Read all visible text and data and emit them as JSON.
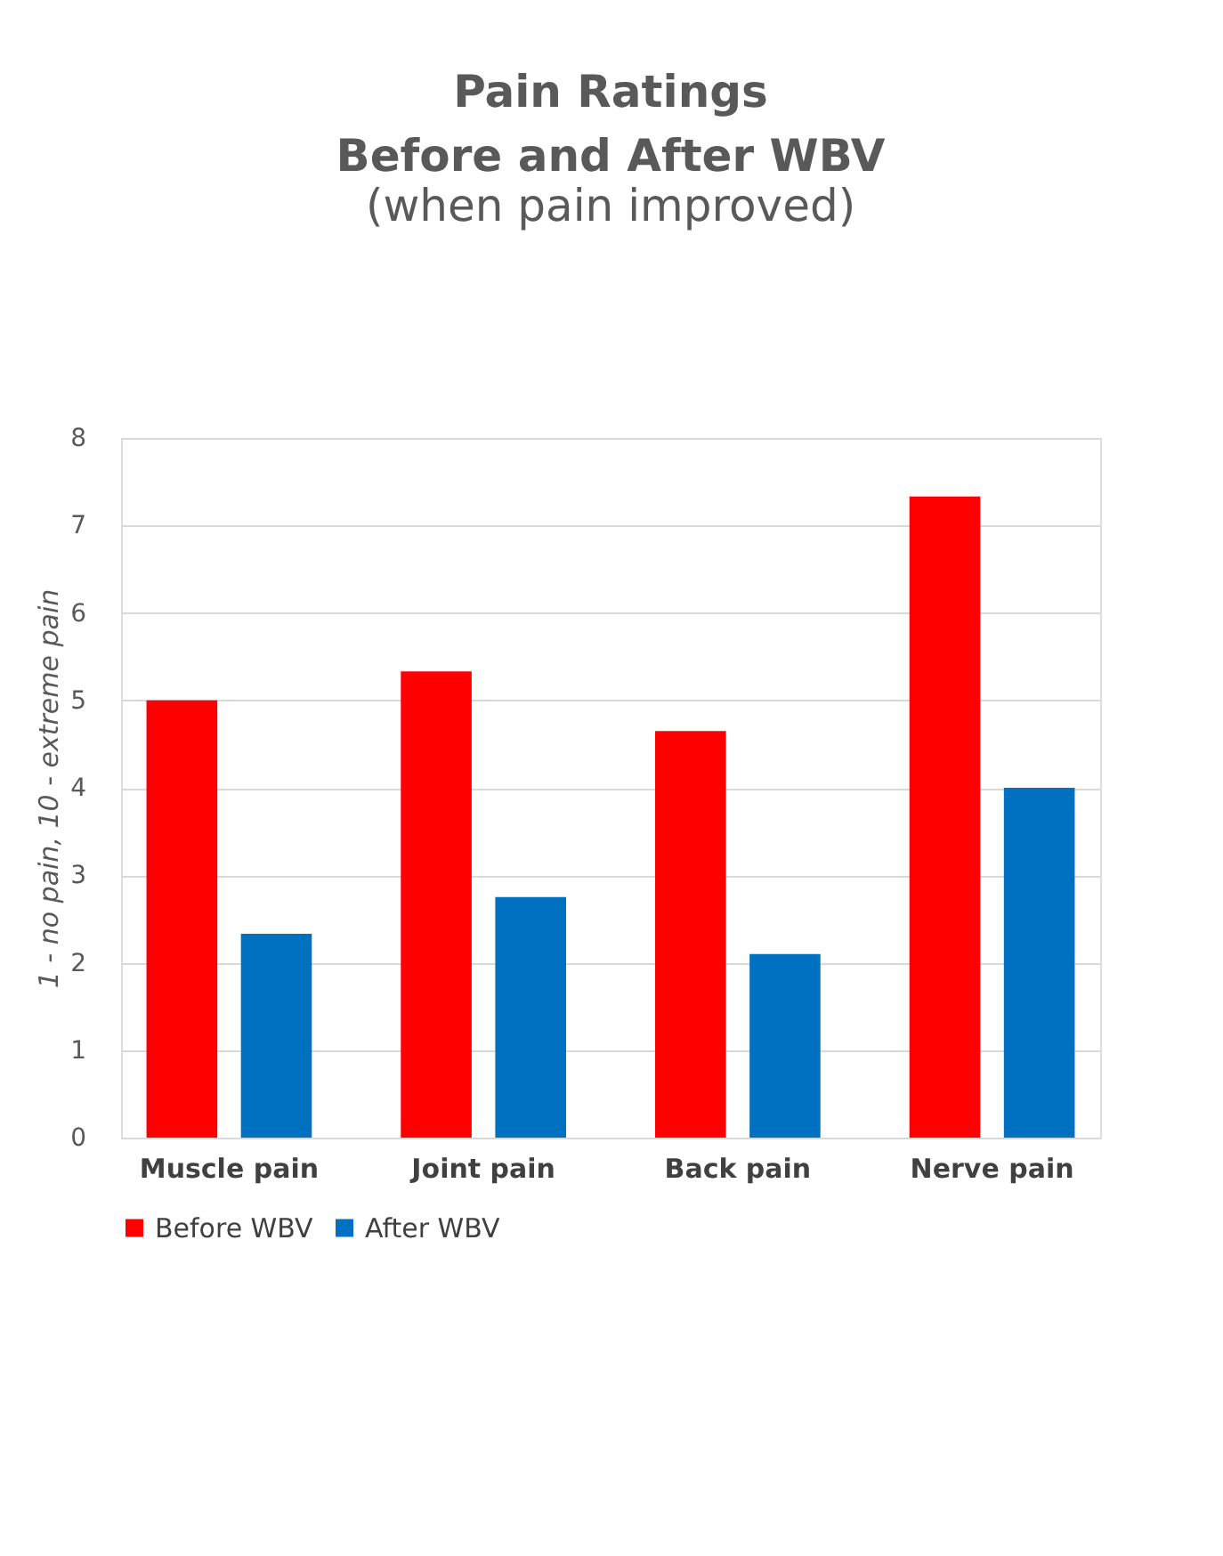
{
  "chart_data": {
    "type": "bar",
    "title": [
      "Pain Ratings",
      "Before and After WBV"
    ],
    "subtitle": "(when pain improved)",
    "ylabel": "1 - no pain, 10 - extreme pain",
    "categories": [
      "Muscle pain",
      "Joint pain",
      "Back pain",
      "Nerve pain"
    ],
    "series": [
      {
        "name": "Before WBV",
        "color": "#ff0000",
        "values": [
          5.0,
          5.33,
          4.65,
          7.33
        ]
      },
      {
        "name": "After WBV",
        "color": "#0070c0",
        "values": [
          2.33,
          2.75,
          2.1,
          4.0
        ]
      }
    ],
    "ylim": [
      0,
      8
    ],
    "yticks": [
      0,
      1,
      2,
      3,
      4,
      5,
      6,
      7,
      8
    ],
    "grid": "y",
    "legend": "bottom"
  }
}
